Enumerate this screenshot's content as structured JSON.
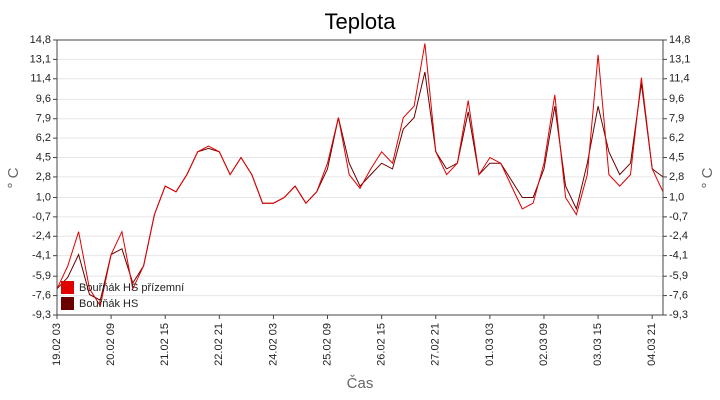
{
  "chart_data": {
    "type": "line",
    "title": "Teplota",
    "x_label": "Čas",
    "y_label": "° C",
    "categories": [
      "19.02 03",
      null,
      null,
      null,
      null,
      "20.02 09",
      null,
      null,
      null,
      null,
      "21.02 15",
      null,
      null,
      null,
      null,
      "22.02 21",
      null,
      null,
      null,
      null,
      "24.02 03",
      null,
      null,
      null,
      null,
      "25.02 09",
      null,
      null,
      null,
      null,
      "26.02 15",
      null,
      null,
      null,
      null,
      "27.02 21",
      null,
      null,
      null,
      null,
      "01.03 03",
      null,
      null,
      null,
      null,
      "02.03 09",
      null,
      null,
      null,
      null,
      "03.03 15",
      null,
      null,
      null,
      null,
      "04.03 21",
      null
    ],
    "series": [
      {
        "name": "Bouřňák HS přízemní",
        "color": "#e00000",
        "values": [
          -7,
          -5,
          -2,
          -7,
          -8.5,
          -4,
          -2,
          -7,
          -5,
          -0.5,
          2,
          1.5,
          3,
          5,
          5.5,
          5,
          3,
          4.5,
          3,
          0.5,
          0.5,
          1,
          2,
          0.5,
          1.5,
          4,
          8,
          3,
          1.8,
          3.5,
          5,
          4,
          8,
          9,
          14.5,
          5,
          3,
          4,
          9.5,
          3,
          4.5,
          4,
          2,
          0,
          0.5,
          4,
          10,
          1,
          -0.5,
          3,
          13.5,
          3,
          2,
          3,
          11.5,
          3.5,
          1.5
        ]
      },
      {
        "name": "Bouřňák HS",
        "color": "#6a0000",
        "values": [
          -7,
          -6,
          -4,
          -7.5,
          -8,
          -4,
          -3.5,
          -6.5,
          -5,
          -0.5,
          2,
          1.5,
          3,
          5,
          5.3,
          5,
          3,
          4.5,
          3,
          0.5,
          0.5,
          1,
          2,
          0.5,
          1.5,
          3.5,
          8,
          4,
          2,
          3,
          4,
          3.5,
          7,
          8,
          12,
          5,
          3.5,
          4,
          8.5,
          3,
          4,
          4,
          2.5,
          1,
          1,
          3.5,
          9,
          2,
          0,
          4,
          9,
          5,
          3,
          4,
          11,
          3.5,
          2.8
        ]
      }
    ],
    "ylim": [
      -9.3,
      14.8
    ],
    "yticks": [
      {
        "value": -9.3,
        "label": "-9,3"
      },
      {
        "value": -7.6,
        "label": "-7,6"
      },
      {
        "value": -5.9,
        "label": "-5,9"
      },
      {
        "value": -4.1,
        "label": "-4,1"
      },
      {
        "value": -2.4,
        "label": "-2,4"
      },
      {
        "value": -0.7,
        "label": "-0,7"
      },
      {
        "value": 1.0,
        "label": "1,0"
      },
      {
        "value": 2.8,
        "label": "2,8"
      },
      {
        "value": 4.5,
        "label": "4,5"
      },
      {
        "value": 6.2,
        "label": "6,2"
      },
      {
        "value": 7.9,
        "label": "7,9"
      },
      {
        "value": 9.6,
        "label": "9,6"
      },
      {
        "value": 11.4,
        "label": "11,4"
      },
      {
        "value": 13.1,
        "label": "13,1"
      },
      {
        "value": 14.8,
        "label": "14,8"
      }
    ],
    "grid": true,
    "legend": "lower left"
  }
}
